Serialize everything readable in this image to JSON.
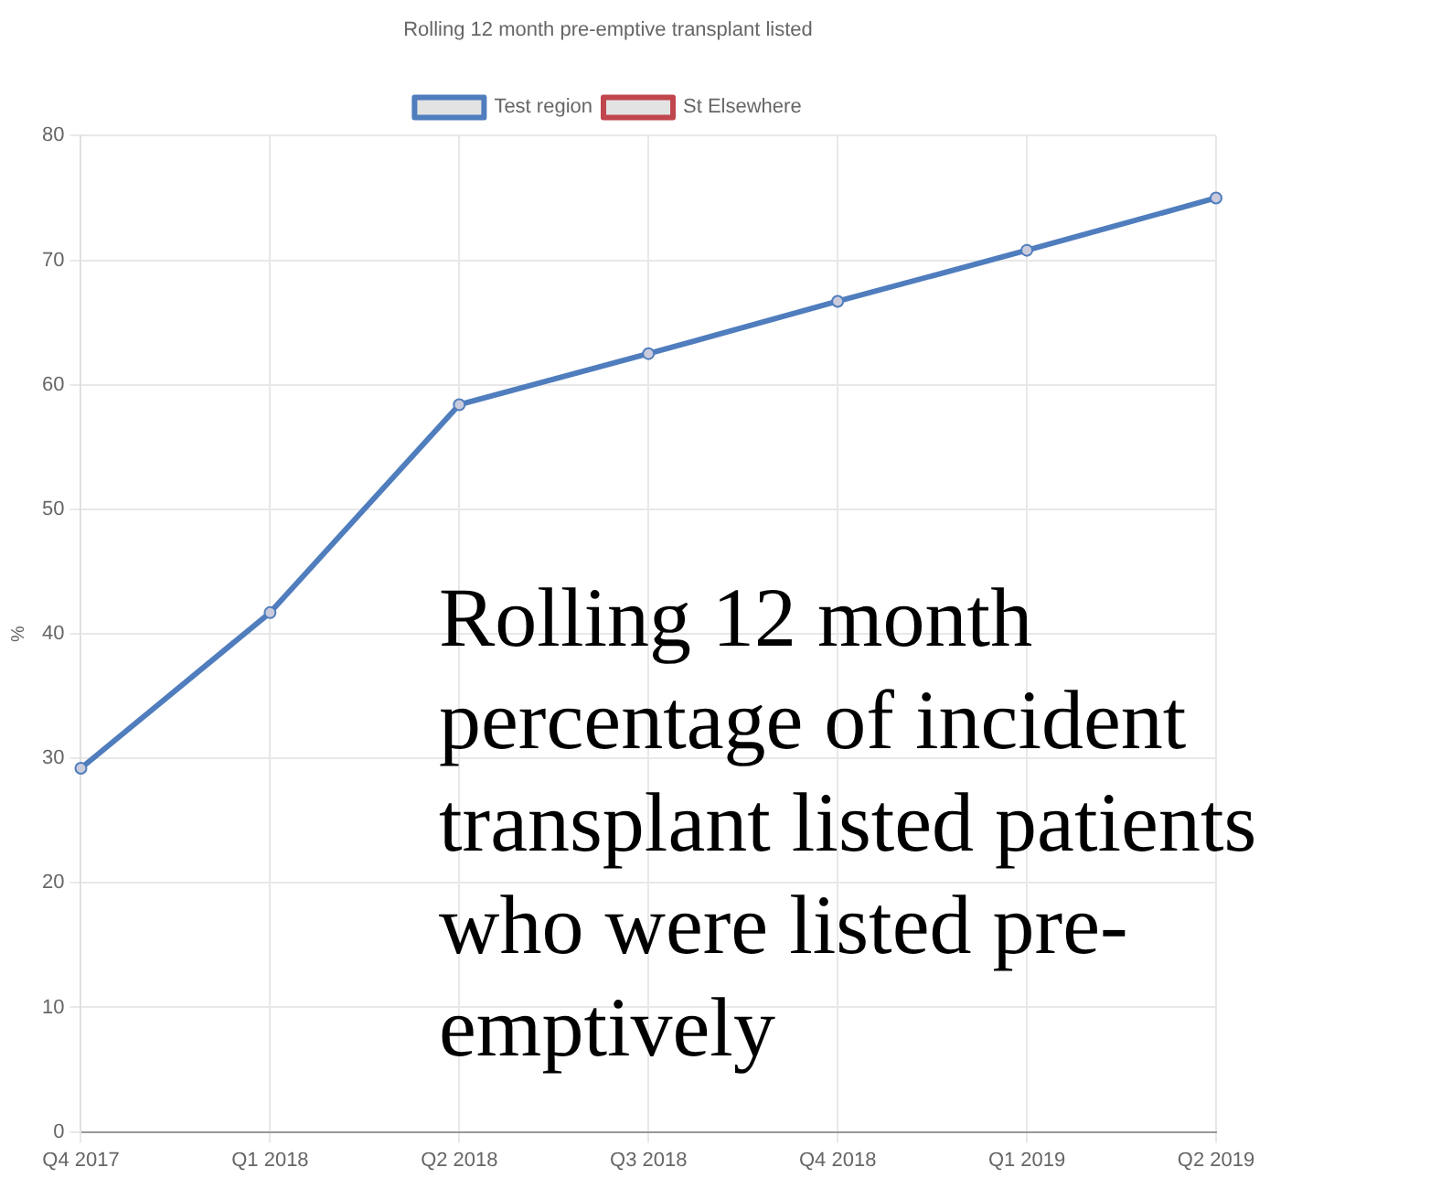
{
  "chart_data": {
    "type": "line",
    "title": "Rolling 12 month pre-emptive transplant listed",
    "categories": [
      "Q4 2017",
      "Q1 2018",
      "Q2 2018",
      "Q3 2018",
      "Q4 2018",
      "Q1 2019",
      "Q2 2019"
    ],
    "series": [
      {
        "name": "Test region",
        "color": "#4f7dbd",
        "values": [
          29.2,
          41.7,
          58.4,
          62.5,
          66.7,
          70.8,
          75.0
        ]
      },
      {
        "name": "St Elsewhere",
        "color": "#c0454d",
        "values": [
          null,
          null,
          null,
          null,
          null,
          null,
          null
        ]
      }
    ],
    "ylabel": "%",
    "ylim": [
      0,
      80
    ],
    "yticks": [
      0,
      10,
      20,
      30,
      40,
      50,
      60,
      70,
      80
    ],
    "grid": true,
    "legend": "top",
    "marker": "circle",
    "line_style": "solid",
    "annotations": [
      "Rolling 12 month percentage of incident transplant listed patients who were listed pre-emptively"
    ]
  }
}
